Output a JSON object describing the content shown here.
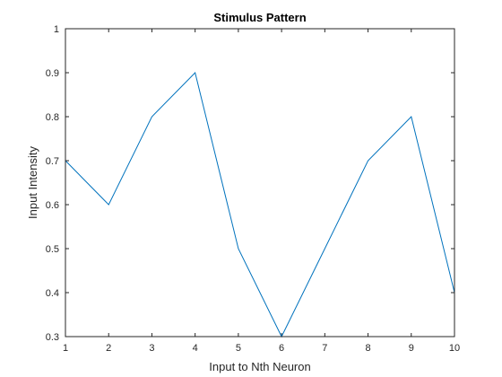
{
  "chart_data": {
    "type": "line",
    "title": "Stimulus Pattern",
    "xlabel": "Input to Nth Neuron",
    "ylabel": "Input Intensity",
    "xlim": [
      1,
      10
    ],
    "ylim": [
      0.3,
      1
    ],
    "xticks": [
      "1",
      "2",
      "3",
      "4",
      "5",
      "6",
      "7",
      "8",
      "9",
      "10"
    ],
    "yticks": [
      "0.3",
      "0.4",
      "0.5",
      "0.6",
      "0.7",
      "0.8",
      "0.9",
      "1"
    ],
    "grid": false,
    "series": [
      {
        "color": "#0072BD",
        "x": [
          1,
          2,
          3,
          4,
          5,
          6,
          7,
          8,
          9,
          10
        ],
        "y": [
          0.7,
          0.6,
          0.8,
          0.9,
          0.5,
          0.3,
          0.5,
          0.7,
          0.8,
          0.4
        ]
      }
    ]
  }
}
